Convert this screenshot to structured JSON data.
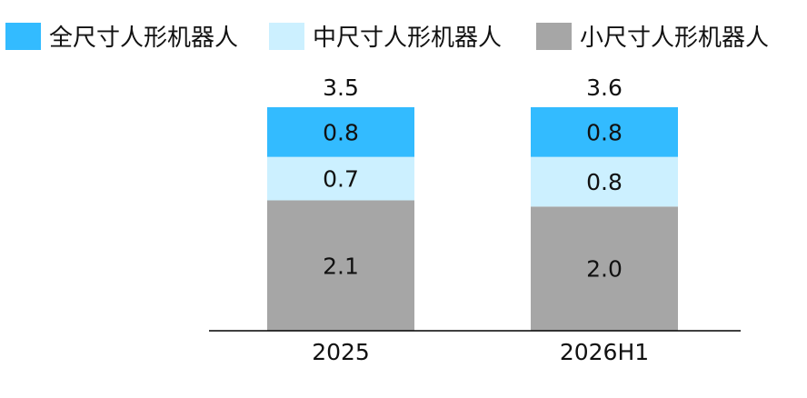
{
  "chart_data": {
    "type": "bar",
    "stacked": true,
    "categories": [
      "2025",
      "2026H1"
    ],
    "series": [
      {
        "name": "小尺寸人形机器人",
        "values": [
          2.1,
          2.0
        ],
        "color": "#a6a6a6"
      },
      {
        "name": "中尺寸人形机器人",
        "values": [
          0.7,
          0.8
        ],
        "color": "#ccf0ff"
      },
      {
        "name": "全尺寸人形机器人",
        "values": [
          0.8,
          0.8
        ],
        "color": "#33bbff"
      }
    ],
    "value_labels": [
      [
        "2.1",
        "2.0"
      ],
      [
        "0.7",
        "0.8"
      ],
      [
        "0.8",
        "0.8"
      ]
    ],
    "totals": [
      "3.5",
      "3.6"
    ],
    "legend_order": [
      "全尺寸人形机器人",
      "中尺寸人形机器人",
      "小尺寸人形机器人"
    ],
    "legend_position": "top",
    "grid": false,
    "ylim": [
      0,
      3.6
    ],
    "title": "",
    "xlabel": "",
    "ylabel": ""
  }
}
